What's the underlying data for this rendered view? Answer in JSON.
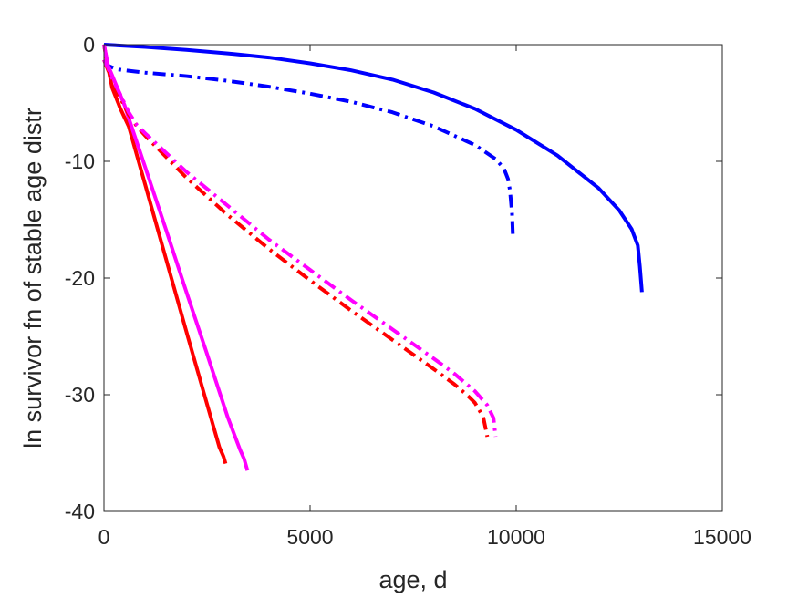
{
  "chart_data": {
    "type": "line",
    "xlabel": "age, d",
    "ylabel": "ln survivor fn of stable age distr",
    "xlim": [
      0,
      15000
    ],
    "ylim": [
      -40,
      0
    ],
    "xticks": [
      0,
      5000,
      10000,
      15000
    ],
    "yticks": [
      -40,
      -30,
      -20,
      -10,
      0
    ],
    "xtick_labels": [
      "0",
      "5000",
      "10000",
      "15000"
    ],
    "ytick_labels": [
      "-40",
      "-30",
      "-20",
      "-10",
      "0"
    ],
    "grid": false,
    "legend": "none",
    "series": [
      {
        "color": "#0000ff",
        "style": "solid",
        "x": [
          0,
          1000,
          2000,
          3000,
          4000,
          5000,
          6000,
          7000,
          8000,
          9000,
          10000,
          11000,
          12000,
          12500,
          12800,
          12950,
          13000,
          13050
        ],
        "y": [
          0,
          -0.2,
          -0.45,
          -0.75,
          -1.1,
          -1.6,
          -2.2,
          -3.0,
          -4.1,
          -5.5,
          -7.3,
          -9.5,
          -12.3,
          -14.2,
          -15.8,
          -17.2,
          -19.0,
          -21.2
        ]
      },
      {
        "color": "#0000ff",
        "style": "dashdot",
        "x": [
          0,
          100,
          300,
          500,
          1000,
          2000,
          3000,
          4000,
          5000,
          6000,
          7000,
          8000,
          9000,
          9500,
          9700,
          9800,
          9850,
          9900,
          9920
        ],
        "y": [
          -1.3,
          -1.8,
          -2.1,
          -2.2,
          -2.4,
          -2.7,
          -3.1,
          -3.6,
          -4.2,
          -4.9,
          -5.8,
          -7.0,
          -8.6,
          -9.8,
          -10.6,
          -11.5,
          -12.5,
          -14.5,
          -16.4
        ]
      },
      {
        "color": "#ff0000",
        "style": "solid",
        "x": [
          0,
          100,
          200,
          400,
          600,
          1000,
          1500,
          2000,
          2500,
          2800,
          2900,
          2950
        ],
        "y": [
          0,
          -2.0,
          -3.7,
          -5.5,
          -7.0,
          -12.0,
          -18.3,
          -24.6,
          -30.8,
          -34.5,
          -35.3,
          -35.9
        ]
      },
      {
        "color": "#ff00ff",
        "style": "solid",
        "x": [
          0,
          100,
          300,
          500,
          600,
          1000,
          1500,
          2000,
          2500,
          3000,
          3300,
          3400,
          3480
        ],
        "y": [
          0,
          -1.8,
          -3.5,
          -5.2,
          -6.3,
          -10.5,
          -15.8,
          -21.2,
          -26.5,
          -31.9,
          -34.7,
          -35.5,
          -36.5
        ]
      },
      {
        "color": "#ff0000",
        "style": "dashdot",
        "x": [
          0,
          100,
          200,
          400,
          600,
          800,
          1000,
          2000,
          3000,
          4000,
          5000,
          6000,
          7000,
          8000,
          8500,
          8800,
          9000,
          9200,
          9300
        ],
        "y": [
          -1.3,
          -2.2,
          -3.2,
          -4.6,
          -6.0,
          -7.0,
          -7.8,
          -11.4,
          -14.6,
          -17.5,
          -20.2,
          -22.8,
          -25.3,
          -27.8,
          -29.1,
          -30.0,
          -30.7,
          -31.9,
          -33.6
        ]
      },
      {
        "color": "#ff00ff",
        "style": "dashdot",
        "x": [
          0,
          100,
          200,
          400,
          600,
          800,
          1000,
          2000,
          3000,
          4000,
          5000,
          6000,
          7000,
          8000,
          8500,
          9000,
          9300,
          9450,
          9500
        ],
        "y": [
          -1.3,
          -2.0,
          -2.9,
          -4.3,
          -5.8,
          -6.9,
          -7.6,
          -10.9,
          -13.8,
          -16.7,
          -19.3,
          -21.9,
          -24.4,
          -26.9,
          -28.2,
          -29.7,
          -30.9,
          -32.0,
          -33.6
        ]
      }
    ]
  }
}
